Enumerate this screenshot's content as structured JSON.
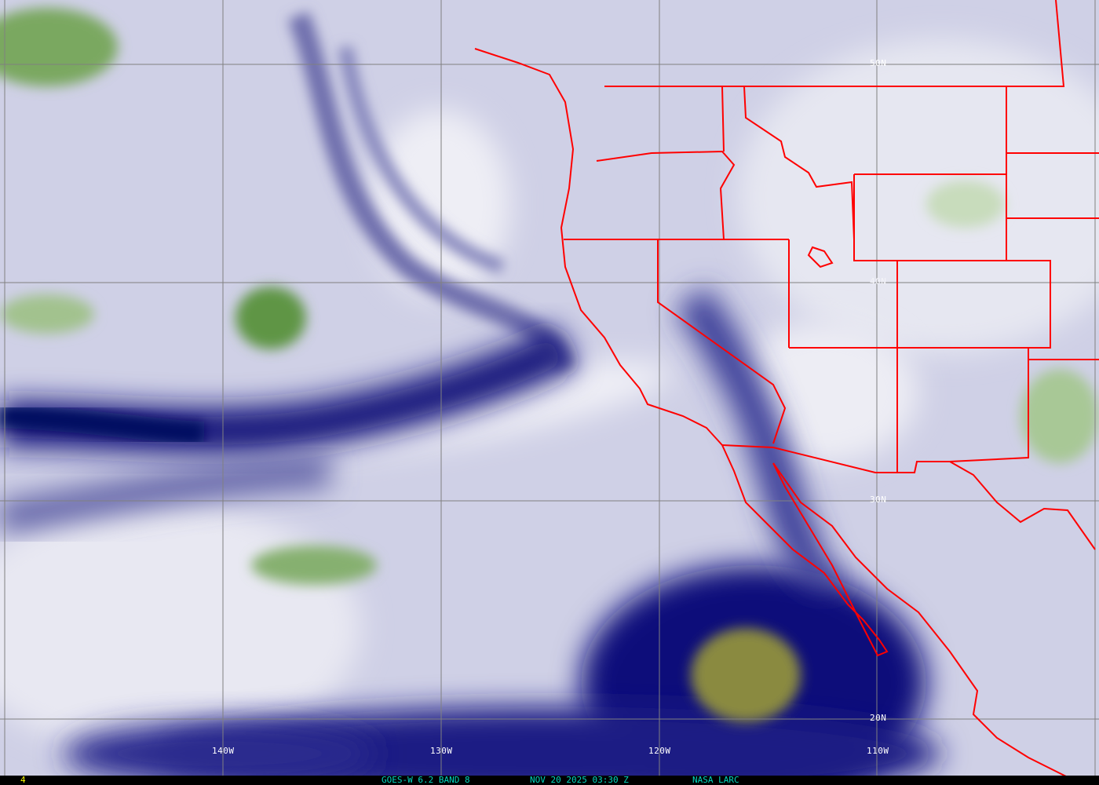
{
  "image": {
    "caption": {
      "frame_number": "4",
      "product": "GOES-W 6.2 BAND 8",
      "datetime": "NOV 20 2025 03:30 Z",
      "source": "NASA LARC"
    },
    "latitude_labels": [
      "50N",
      "40N",
      "30N",
      "20N"
    ],
    "longitude_labels": [
      "140W",
      "130W",
      "120W",
      "110W"
    ],
    "colors": {
      "boundaries": "#ff0000",
      "grid": "#808080",
      "caption_text": "#00d8c0",
      "frame_text": "#ffff00",
      "moist": "#000a70",
      "dry": "#5a9a3a"
    }
  }
}
